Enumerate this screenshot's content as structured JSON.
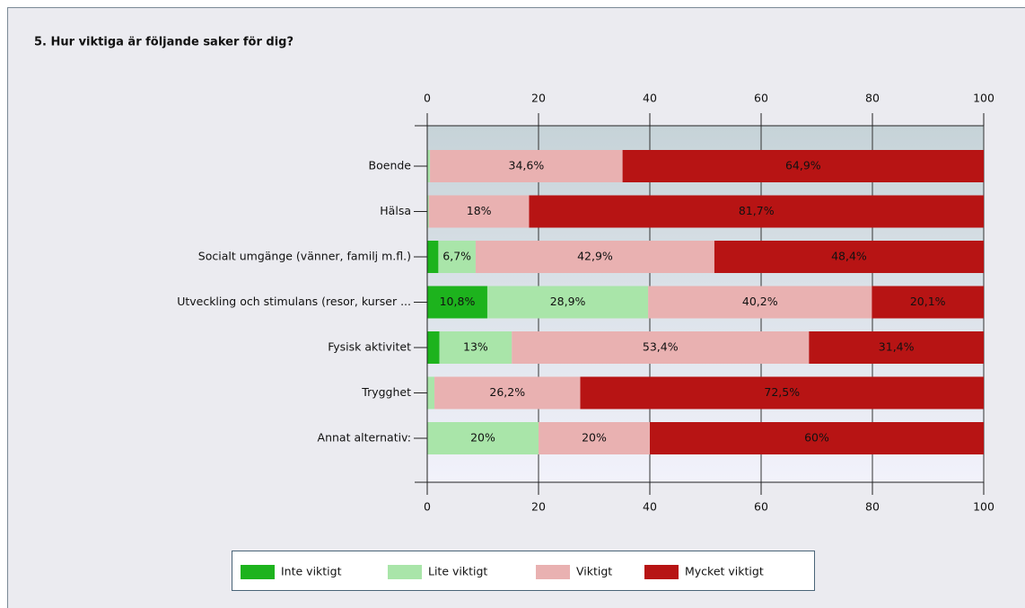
{
  "chart_data": {
    "type": "stacked-barh",
    "title": "5. Hur viktiga är följande saker för dig?",
    "categories": [
      "Boende",
      "Hälsa",
      "Socialt umgänge (vänner, familj m.fl.)",
      "Utveckling och stimulans (resor, kurser ...",
      "Fysisk aktivitet",
      "Trygghet",
      "Annat alternativ:"
    ],
    "series": [
      {
        "name": "Inte viktigt",
        "color": "#1db31d",
        "values": [
          0,
          0,
          2,
          10.8,
          2.2,
          0,
          0
        ],
        "value_labels": [
          null,
          null,
          null,
          "10,8%",
          null,
          null,
          null
        ]
      },
      {
        "name": "Lite viktigt",
        "color": "#a9e5a9",
        "values": [
          0.5,
          0.3,
          6.7,
          28.9,
          13,
          1.3,
          20
        ],
        "value_labels": [
          null,
          null,
          "6,7%",
          "28,9%",
          "13%",
          null,
          "20%"
        ]
      },
      {
        "name": "Viktigt",
        "color": "#e9b1b1",
        "values": [
          34.6,
          18,
          42.9,
          40.2,
          53.4,
          26.2,
          20
        ],
        "value_labels": [
          "34,6%",
          "18%",
          "42,9%",
          "40,2%",
          "53,4%",
          "26,2%",
          "20%"
        ]
      },
      {
        "name": "Mycket viktigt",
        "color": "#b71414",
        "values": [
          64.9,
          81.7,
          48.4,
          20.1,
          31.4,
          72.5,
          60
        ],
        "value_labels": [
          "64,9%",
          "81,7%",
          "48,4%",
          "20,1%",
          "31,4%",
          "72,5%",
          "60%"
        ]
      }
    ],
    "xlim": [
      0,
      100
    ],
    "xticks": [
      0,
      20,
      40,
      60,
      80,
      100
    ],
    "grid": true
  }
}
